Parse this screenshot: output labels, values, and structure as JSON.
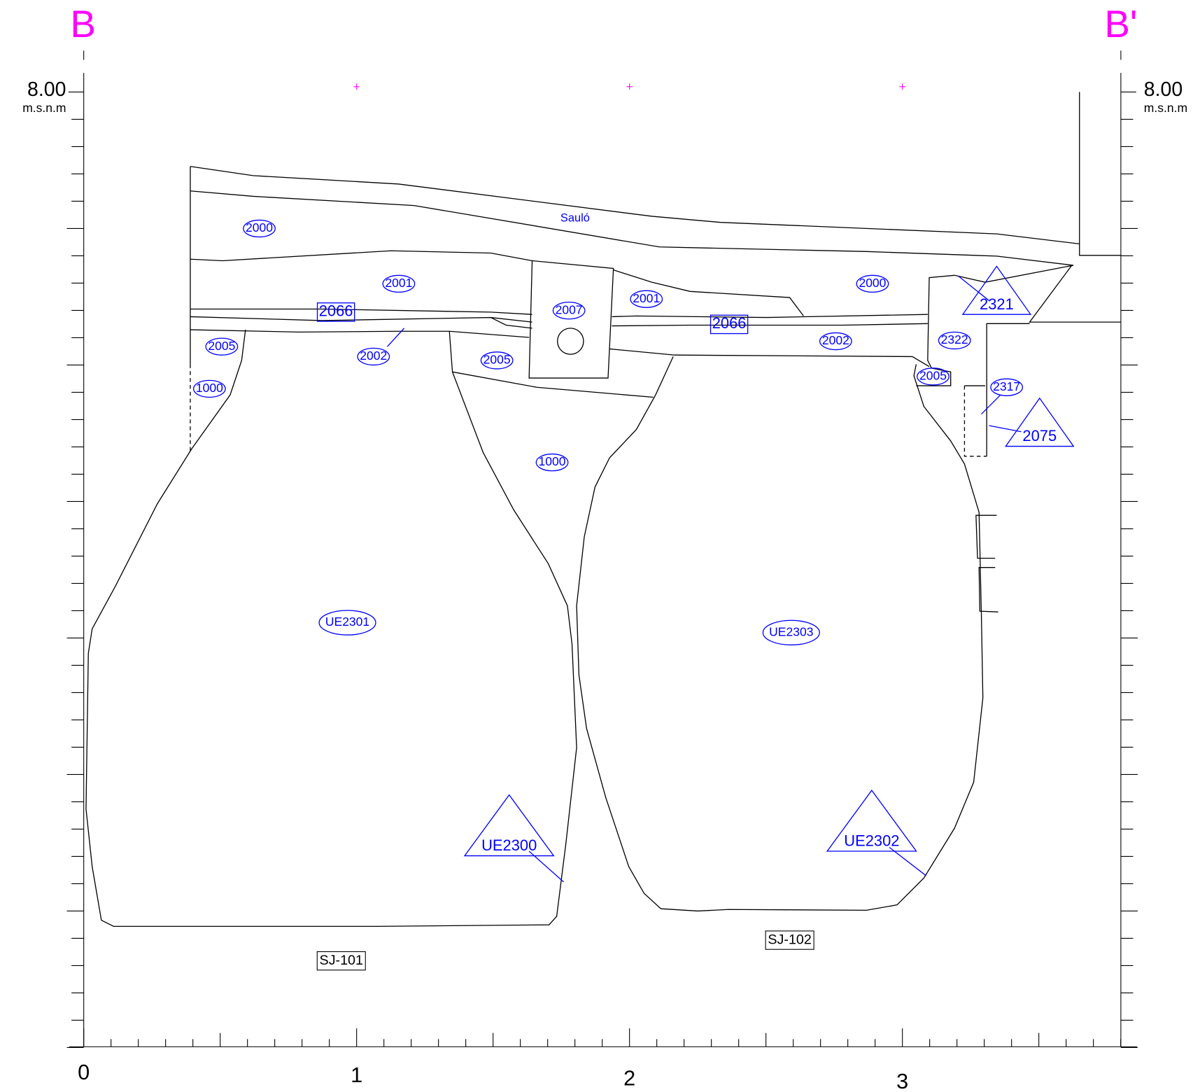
{
  "section": {
    "start": "B",
    "end": "B'"
  },
  "elevation": {
    "left": {
      "value": "8.00",
      "unit": "m.s.n.m"
    },
    "right": {
      "value": "8.00",
      "unit": "m.s.n.m"
    }
  },
  "scale_labels": [
    "0",
    "1",
    "2",
    "3"
  ],
  "annotation": "Sauló",
  "units": [
    {
      "label": "2000",
      "shape": "ellipse"
    },
    {
      "label": "2001",
      "shape": "ellipse"
    },
    {
      "label": "2066",
      "shape": "box"
    },
    {
      "label": "2002",
      "shape": "ellipse"
    },
    {
      "label": "2005",
      "shape": "ellipse"
    },
    {
      "label": "1000",
      "shape": "ellipse"
    },
    {
      "label": "2007",
      "shape": "ellipse"
    },
    {
      "label": "2005",
      "shape": "ellipse"
    },
    {
      "label": "2001",
      "shape": "ellipse"
    },
    {
      "label": "2066",
      "shape": "box"
    },
    {
      "label": "1000",
      "shape": "ellipse"
    },
    {
      "label": "2000",
      "shape": "ellipse"
    },
    {
      "label": "2002",
      "shape": "ellipse"
    },
    {
      "label": "2322",
      "shape": "ellipse"
    },
    {
      "label": "2321",
      "shape": "triangle"
    },
    {
      "label": "2005",
      "shape": "ellipse"
    },
    {
      "label": "2317",
      "shape": "ellipse"
    },
    {
      "label": "2075",
      "shape": "triangle"
    },
    {
      "label": "UE2301",
      "shape": "ellipse"
    },
    {
      "label": "UE2303",
      "shape": "ellipse"
    },
    {
      "label": "UE2300",
      "shape": "triangle"
    },
    {
      "label": "UE2302",
      "shape": "triangle"
    }
  ],
  "structures": [
    "SJ-101",
    "SJ-102"
  ]
}
